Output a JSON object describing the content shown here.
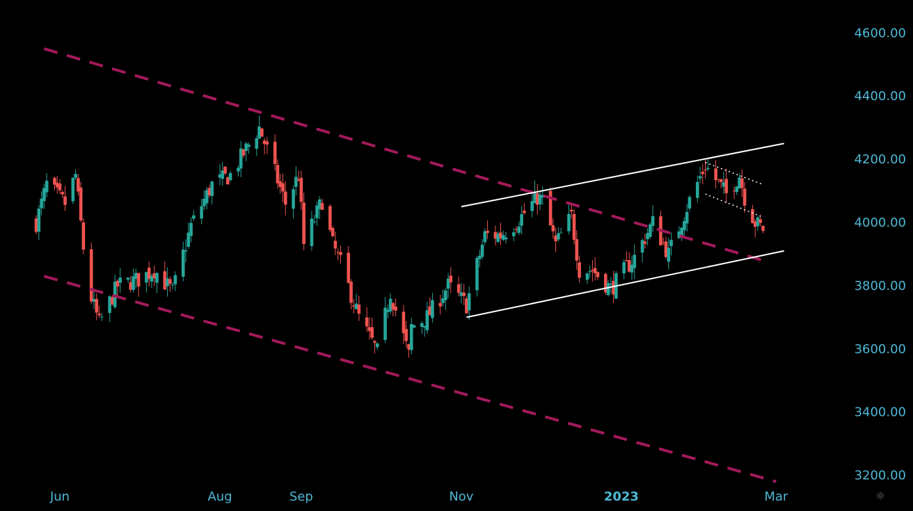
{
  "chart_data": {
    "type": "candlestick",
    "y_axis": {
      "ticks": [
        3200,
        3400,
        3600,
        3800,
        4000,
        4200,
        4400,
        4600
      ],
      "tick_labels": [
        "3200.00",
        "3400.00",
        "3600.00",
        "3800.00",
        "4000.00",
        "4200.00",
        "4400.00",
        "4600.00"
      ],
      "position": "right"
    },
    "x_axis": {
      "labels": [
        {
          "text": "Jun",
          "date": "2022-06-01",
          "bold": false
        },
        {
          "text": "Aug",
          "date": "2022-08-01",
          "bold": false
        },
        {
          "text": "Sep",
          "date": "2022-09-01",
          "bold": false
        },
        {
          "text": "Nov",
          "date": "2022-11-01",
          "bold": false
        },
        {
          "text": "2023",
          "date": "2023-01-01",
          "bold": true
        },
        {
          "text": "Mar",
          "date": "2023-03-01",
          "bold": false
        }
      ]
    },
    "colors": {
      "background": "#000000",
      "up": "#26a69a",
      "down": "#ef5350",
      "axis_text": "#4fb8d6",
      "channel_down": "#a3195b",
      "channel_up": "#ffffff",
      "flag": "#ffffff"
    },
    "waypoints": [
      [
        "2022-05-23",
        4000
      ],
      [
        "2022-05-27",
        4120
      ],
      [
        "2022-06-03",
        4060
      ],
      [
        "2022-06-07",
        4150
      ],
      [
        "2022-06-10",
        3920
      ],
      [
        "2022-06-13",
        3760
      ],
      [
        "2022-06-16",
        3680
      ],
      [
        "2022-06-23",
        3800
      ],
      [
        "2022-07-01",
        3820
      ],
      [
        "2022-07-07",
        3850
      ],
      [
        "2022-07-14",
        3780
      ],
      [
        "2022-07-21",
        3990
      ],
      [
        "2022-07-29",
        4120
      ],
      [
        "2022-08-05",
        4150
      ],
      [
        "2022-08-16",
        4300
      ],
      [
        "2022-08-19",
        4230
      ],
      [
        "2022-08-26",
        4060
      ],
      [
        "2022-08-31",
        4150
      ],
      [
        "2022-09-02",
        3930
      ],
      [
        "2022-09-09",
        4070
      ],
      [
        "2022-09-13",
        3930
      ],
      [
        "2022-09-16",
        3870
      ],
      [
        "2022-09-23",
        3700
      ],
      [
        "2022-09-30",
        3590
      ],
      [
        "2022-10-05",
        3780
      ],
      [
        "2022-10-12",
        3580
      ],
      [
        "2022-10-13",
        3670
      ],
      [
        "2022-10-19",
        3700
      ],
      [
        "2022-10-27",
        3800
      ],
      [
        "2022-11-03",
        3740
      ],
      [
        "2022-11-10",
        3960
      ],
      [
        "2022-11-16",
        3960
      ],
      [
        "2022-11-22",
        4000
      ],
      [
        "2022-11-30",
        4080
      ],
      [
        "2022-12-02",
        4070
      ],
      [
        "2022-12-07",
        3930
      ],
      [
        "2022-12-13",
        4020
      ],
      [
        "2022-12-16",
        3850
      ],
      [
        "2022-12-21",
        3850
      ],
      [
        "2022-12-28",
        3790
      ],
      [
        "2023-01-06",
        3890
      ],
      [
        "2023-01-13",
        4000
      ],
      [
        "2023-01-19",
        3900
      ],
      [
        "2023-01-27",
        4070
      ],
      [
        "2023-02-02",
        4180
      ],
      [
        "2023-02-10",
        4090
      ],
      [
        "2023-02-15",
        4150
      ],
      [
        "2023-02-17",
        4080
      ],
      [
        "2023-02-21",
        4000
      ],
      [
        "2023-02-24",
        3980
      ]
    ],
    "trendlines": [
      {
        "name": "descending-channel-upper",
        "style": "dashed",
        "color": "#a3195b",
        "from": [
          "2022-05-26",
          4550
        ],
        "to": [
          "2023-02-24",
          3880
        ]
      },
      {
        "name": "descending-channel-lower",
        "style": "dashed",
        "color": "#a3195b",
        "from": [
          "2022-05-26",
          3830
        ],
        "to": [
          "2023-03-01",
          3180
        ]
      },
      {
        "name": "ascending-channel-upper",
        "style": "solid",
        "color": "#ffffff",
        "from": [
          "2022-11-01",
          4050
        ],
        "to": [
          "2023-03-04",
          4250
        ]
      },
      {
        "name": "ascending-channel-lower",
        "style": "solid",
        "color": "#ffffff",
        "from": [
          "2022-11-03",
          3700
        ],
        "to": [
          "2023-03-04",
          3910
        ]
      },
      {
        "name": "flag-upper",
        "style": "dotted",
        "color": "#ffffff",
        "from": [
          "2023-02-02",
          4190
        ],
        "to": [
          "2023-02-24",
          4120
        ]
      },
      {
        "name": "flag-lower",
        "style": "dotted",
        "color": "#ffffff",
        "from": [
          "2023-02-02",
          4090
        ],
        "to": [
          "2023-02-23",
          4020
        ]
      }
    ]
  },
  "ui": {
    "settings_icon": "gear-icon"
  }
}
